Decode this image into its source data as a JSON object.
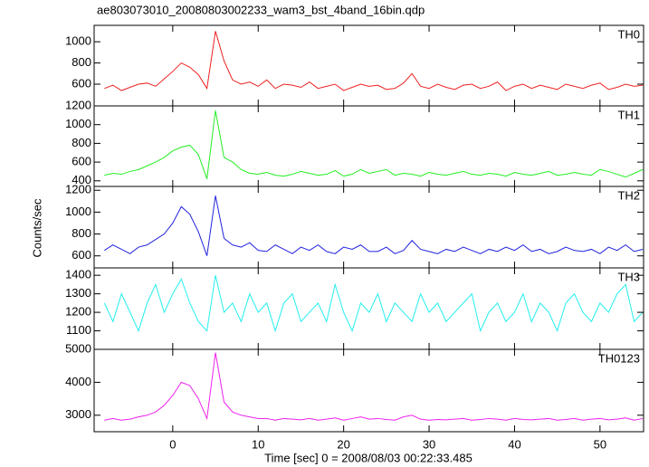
{
  "chart_data": [
    {
      "type": "line",
      "title": "ae803073010_20080803002233_wam3_bst_4band_16bin.qdp",
      "label": "TH0",
      "color": "#ee2222",
      "x": [
        -8,
        -7,
        -6,
        -5,
        -4,
        -3,
        -2,
        -1,
        0,
        1,
        2,
        3,
        4,
        5,
        6,
        7,
        8,
        9,
        10,
        11,
        12,
        13,
        14,
        15,
        16,
        17,
        18,
        19,
        20,
        21,
        22,
        23,
        24,
        25,
        26,
        27,
        28,
        29,
        30,
        31,
        32,
        33,
        34,
        35,
        36,
        37,
        38,
        39,
        40,
        41,
        42,
        43,
        44,
        45,
        46,
        47,
        48,
        49,
        50,
        51,
        52,
        53,
        54,
        55
      ],
      "values": [
        560,
        590,
        540,
        570,
        600,
        610,
        580,
        650,
        720,
        800,
        760,
        690,
        560,
        1100,
        820,
        640,
        600,
        620,
        580,
        640,
        560,
        600,
        590,
        570,
        620,
        560,
        580,
        600,
        540,
        570,
        600,
        580,
        590,
        550,
        560,
        610,
        700,
        580,
        560,
        600,
        570,
        550,
        590,
        600,
        560,
        580,
        620,
        540,
        580,
        600,
        560,
        590,
        570,
        550,
        600,
        580,
        560,
        590,
        610,
        550,
        570,
        600,
        580,
        590
      ],
      "xlim": [
        -9.2,
        55.1
      ],
      "ylim": [
        395,
        1155
      ],
      "yticks": [
        600,
        800,
        1000
      ]
    },
    {
      "type": "line",
      "label": "TH1",
      "color": "#22ee22",
      "x": [
        -8,
        -7,
        -6,
        -5,
        -4,
        -3,
        -2,
        -1,
        0,
        1,
        2,
        3,
        4,
        5,
        6,
        7,
        8,
        9,
        10,
        11,
        12,
        13,
        14,
        15,
        16,
        17,
        18,
        19,
        20,
        21,
        22,
        23,
        24,
        25,
        26,
        27,
        28,
        29,
        30,
        31,
        32,
        33,
        34,
        35,
        36,
        37,
        38,
        39,
        40,
        41,
        42,
        43,
        44,
        45,
        46,
        47,
        48,
        49,
        50,
        51,
        52,
        53,
        54,
        55
      ],
      "values": [
        460,
        480,
        470,
        500,
        520,
        560,
        600,
        650,
        720,
        760,
        780,
        680,
        420,
        1150,
        650,
        600,
        520,
        480,
        470,
        490,
        460,
        450,
        470,
        500,
        480,
        460,
        470,
        510,
        450,
        470,
        520,
        480,
        500,
        520,
        460,
        480,
        470,
        450,
        490,
        470,
        460,
        480,
        500,
        470,
        460,
        480,
        470,
        450,
        490,
        470,
        460,
        480,
        500,
        460,
        470,
        490,
        470,
        460,
        520,
        500,
        470,
        440,
        480,
        520
      ],
      "xlim": [
        -9.2,
        55.1
      ],
      "ylim": [
        340,
        1200
      ],
      "yticks": [
        400,
        600,
        800,
        1000,
        1200
      ]
    },
    {
      "type": "line",
      "label": "TH2",
      "ylabel": "Counts/sec",
      "color": "#2222dd",
      "x": [
        -8,
        -7,
        -6,
        -5,
        -4,
        -3,
        -2,
        -1,
        0,
        1,
        2,
        3,
        4,
        5,
        6,
        7,
        8,
        9,
        10,
        11,
        12,
        13,
        14,
        15,
        16,
        17,
        18,
        19,
        20,
        21,
        22,
        23,
        24,
        25,
        26,
        27,
        28,
        29,
        30,
        31,
        32,
        33,
        34,
        35,
        36,
        37,
        38,
        39,
        40,
        41,
        42,
        43,
        44,
        45,
        46,
        47,
        48,
        49,
        50,
        51,
        52,
        53,
        54,
        55
      ],
      "values": [
        650,
        700,
        660,
        620,
        680,
        700,
        750,
        800,
        900,
        1050,
        980,
        820,
        600,
        1150,
        760,
        700,
        680,
        720,
        650,
        640,
        700,
        660,
        620,
        680,
        650,
        700,
        640,
        620,
        680,
        660,
        700,
        640,
        640,
        680,
        620,
        650,
        740,
        660,
        640,
        620,
        660,
        640,
        680,
        650,
        620,
        660,
        640,
        680,
        650,
        700,
        640,
        660,
        620,
        640,
        680,
        650,
        640,
        660,
        620,
        680,
        650,
        700,
        640,
        660
      ],
      "xlim": [
        -9.2,
        55.1
      ],
      "ylim": [
        490,
        1235
      ],
      "yticks": [
        600,
        800,
        1000,
        1200
      ]
    },
    {
      "type": "line",
      "label": "TH3",
      "color": "#22eeee",
      "x": [
        -8,
        -7,
        -6,
        -5,
        -4,
        -3,
        -2,
        -1,
        0,
        1,
        2,
        3,
        4,
        5,
        6,
        7,
        8,
        9,
        10,
        11,
        12,
        13,
        14,
        15,
        16,
        17,
        18,
        19,
        20,
        21,
        22,
        23,
        24,
        25,
        26,
        27,
        28,
        29,
        30,
        31,
        32,
        33,
        34,
        35,
        36,
        37,
        38,
        39,
        40,
        41,
        42,
        43,
        44,
        45,
        46,
        47,
        48,
        49,
        50,
        51,
        52,
        53,
        54,
        55
      ],
      "values": [
        1250,
        1150,
        1300,
        1200,
        1100,
        1250,
        1350,
        1200,
        1300,
        1380,
        1250,
        1150,
        1100,
        1400,
        1200,
        1250,
        1150,
        1300,
        1200,
        1250,
        1100,
        1250,
        1300,
        1150,
        1200,
        1250,
        1150,
        1350,
        1200,
        1100,
        1250,
        1200,
        1300,
        1150,
        1250,
        1200,
        1150,
        1300,
        1200,
        1250,
        1150,
        1200,
        1250,
        1300,
        1100,
        1200,
        1250,
        1150,
        1200,
        1300,
        1150,
        1250,
        1200,
        1100,
        1250,
        1300,
        1200,
        1150,
        1250,
        1200,
        1300,
        1350,
        1150,
        1200
      ],
      "xlim": [
        -9.2,
        55.1
      ],
      "ylim": [
        1000,
        1440
      ],
      "yticks": [
        1100,
        1200,
        1300,
        1400
      ]
    },
    {
      "type": "line",
      "label": "TH0123",
      "xlabel": "Time [sec] 0 = 2008/08/03 00:22:33.485",
      "color": "#ee22ee",
      "x": [
        -8,
        -7,
        -6,
        -5,
        -4,
        -3,
        -2,
        -1,
        0,
        1,
        2,
        3,
        4,
        5,
        6,
        7,
        8,
        9,
        10,
        11,
        12,
        13,
        14,
        15,
        16,
        17,
        18,
        19,
        20,
        21,
        22,
        23,
        24,
        25,
        26,
        27,
        28,
        29,
        30,
        31,
        32,
        33,
        34,
        35,
        36,
        37,
        38,
        39,
        40,
        41,
        42,
        43,
        44,
        45,
        46,
        47,
        48,
        49,
        50,
        51,
        52,
        53,
        54,
        55
      ],
      "values": [
        2850,
        2900,
        2850,
        2880,
        2950,
        3000,
        3100,
        3300,
        3600,
        4000,
        3900,
        3500,
        2900,
        4900,
        3400,
        3100,
        3000,
        2950,
        2900,
        2900,
        2850,
        2900,
        2880,
        2860,
        2900,
        2850,
        2880,
        2920,
        2850,
        2900,
        2950,
        2880,
        2900,
        2870,
        2850,
        2950,
        3000,
        2880,
        2850,
        2870,
        2860,
        2880,
        2900,
        2850,
        2870,
        2900,
        2880,
        2850,
        2900,
        2870,
        2860,
        2880,
        2900,
        2850,
        2870,
        2900,
        2850,
        2880,
        2900,
        2860,
        2880,
        2920,
        2850,
        2900
      ],
      "xlim": [
        -9.2,
        55.1
      ],
      "ylim": [
        2500,
        5000
      ],
      "yticks": [
        3000,
        4000,
        5000
      ],
      "xticks": [
        0,
        10,
        20,
        30,
        40,
        50
      ]
    }
  ]
}
